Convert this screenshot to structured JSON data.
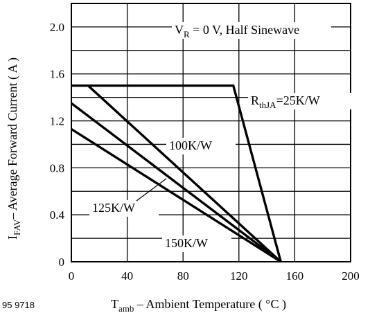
{
  "chart_data": {
    "type": "line",
    "xlabel": {
      "main": "T",
      "sub": "amb",
      "rest": " – Ambient Temperature ( °C )"
    },
    "ylabel": {
      "main": "I",
      "sub": "FAV",
      "rest": "– Average Forward Current ( A )"
    },
    "xlim": [
      0,
      200
    ],
    "ylim": [
      0,
      2.2
    ],
    "x_ticks": [
      0,
      40,
      80,
      120,
      160,
      200
    ],
    "y_ticks": [
      0,
      0.4,
      0.8,
      1.2,
      1.6,
      2.0
    ],
    "x_tick_labels": [
      "0",
      "40",
      "80",
      "120",
      "160",
      "200"
    ],
    "y_tick_labels": [
      "0",
      "0.4",
      "0.8",
      "1.2",
      "1.6",
      "2.0"
    ],
    "grid": true,
    "condition": {
      "main": "V",
      "sub": "R",
      "rest": " = 0 V, Half Sinewave"
    },
    "figure_id": "95 9718",
    "series": [
      {
        "name": "R_thJA=25K/W",
        "x": [
          0,
          116,
          150
        ],
        "y": [
          1.5,
          1.5,
          0
        ]
      },
      {
        "name": "100K/W",
        "x": [
          12,
          150
        ],
        "y": [
          1.5,
          0
        ]
      },
      {
        "name": "125K/W",
        "x": [
          0,
          150
        ],
        "y": [
          1.35,
          0
        ]
      },
      {
        "name": "150K/W",
        "x": [
          0,
          150
        ],
        "y": [
          1.13,
          0
        ]
      }
    ],
    "annotations": [
      {
        "main": "R",
        "sub": "thJA",
        "rest": "=25K/W"
      },
      {
        "main": "100K/W",
        "sub": "",
        "rest": ""
      },
      {
        "main": "125K/W",
        "sub": "",
        "rest": ""
      },
      {
        "main": "150K/W",
        "sub": "",
        "rest": ""
      }
    ]
  }
}
